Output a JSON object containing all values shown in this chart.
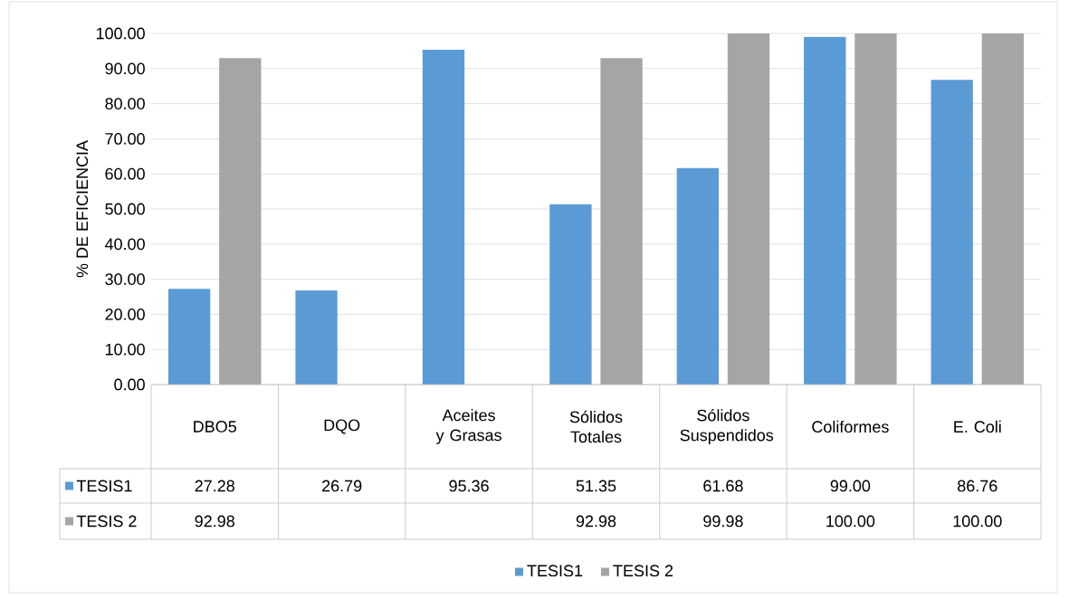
{
  "chart_data": {
    "type": "bar",
    "ylabel": "% DE EFICIENCIA",
    "categories": [
      "DBO5",
      "DQO",
      "Aceites y Grasas",
      "Sólidos Totales",
      "Sólidos Suspendidos",
      "Coliformes",
      "E. Coli"
    ],
    "series": [
      {
        "name": "TESIS1",
        "color": "#5b9bd5",
        "values": [
          27.28,
          26.79,
          95.36,
          51.35,
          61.68,
          99.0,
          86.76
        ],
        "value_labels": [
          "27.28",
          "26.79",
          "95.36",
          "51.35",
          "61.68",
          "99.00",
          "86.76"
        ]
      },
      {
        "name": "TESIS 2",
        "color": "#a5a5a5",
        "values": [
          92.98,
          null,
          null,
          92.98,
          99.98,
          100.0,
          100.0
        ],
        "value_labels": [
          "92.98",
          null,
          null,
          "92.98",
          "99.98",
          "100.00",
          "100.00"
        ]
      }
    ],
    "ylim": [
      0,
      100
    ],
    "yticks": [
      {
        "value": 0,
        "label": "0.00"
      },
      {
        "value": 10,
        "label": "10.00"
      },
      {
        "value": 20,
        "label": "20.00"
      },
      {
        "value": 30,
        "label": "30.00"
      },
      {
        "value": 40,
        "label": "40.00"
      },
      {
        "value": 50,
        "label": "50.00"
      },
      {
        "value": 60,
        "label": "60.00"
      },
      {
        "value": 70,
        "label": "70.00"
      },
      {
        "value": 80,
        "label": "80.00"
      },
      {
        "value": 90,
        "label": "90.00"
      },
      {
        "value": 100,
        "label": "100.00"
      }
    ],
    "grid": "y",
    "legend": "bottom"
  }
}
